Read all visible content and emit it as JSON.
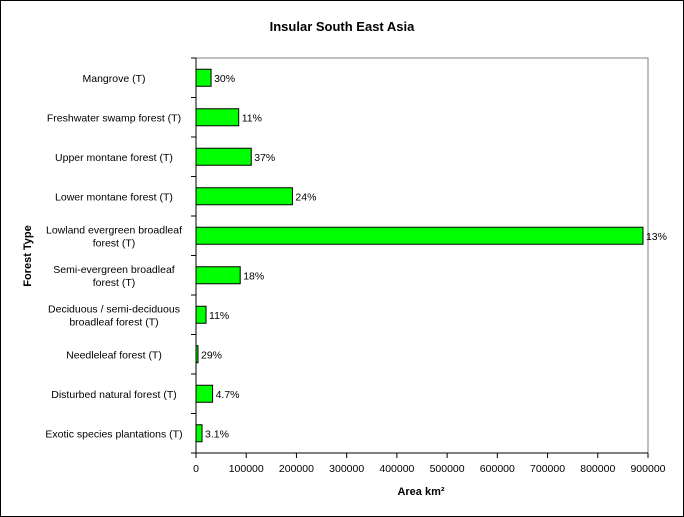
{
  "chart_data": {
    "type": "bar",
    "orientation": "horizontal",
    "title": "Insular South East Asia",
    "xlabel": "Area km²",
    "ylabel": "Forest Type",
    "xlim": [
      0,
      900000
    ],
    "xticks": [
      "0",
      "100000",
      "200000",
      "300000",
      "400000",
      "500000",
      "600000",
      "700000",
      "800000",
      "900000"
    ],
    "grid": false,
    "legend": "none",
    "bar_color": "#00ff00",
    "categories": [
      [
        "Mangrove (T)"
      ],
      [
        "Freshwater swamp forest (T)"
      ],
      [
        "Upper montane forest (T)"
      ],
      [
        "Lower montane forest (T)"
      ],
      [
        "Lowland evergreen broadleaf",
        "forest (T)"
      ],
      [
        "Semi-evergreen broadleaf",
        "forest (T)"
      ],
      [
        "Deciduous / semi-deciduous",
        "broadleaf forest (T)"
      ],
      [
        "Needleleaf forest (T)"
      ],
      [
        "Disturbed natural forest (T)"
      ],
      [
        "Exotic species plantations (T)"
      ]
    ],
    "values": [
      30000,
      85000,
      110000,
      192000,
      890000,
      88000,
      20000,
      4000,
      33000,
      12000
    ],
    "data_labels": [
      "30%",
      "11%",
      "37%",
      "24%",
      "13%",
      "18%",
      "11%",
      "29%",
      "4.7%",
      "3.1%"
    ]
  }
}
